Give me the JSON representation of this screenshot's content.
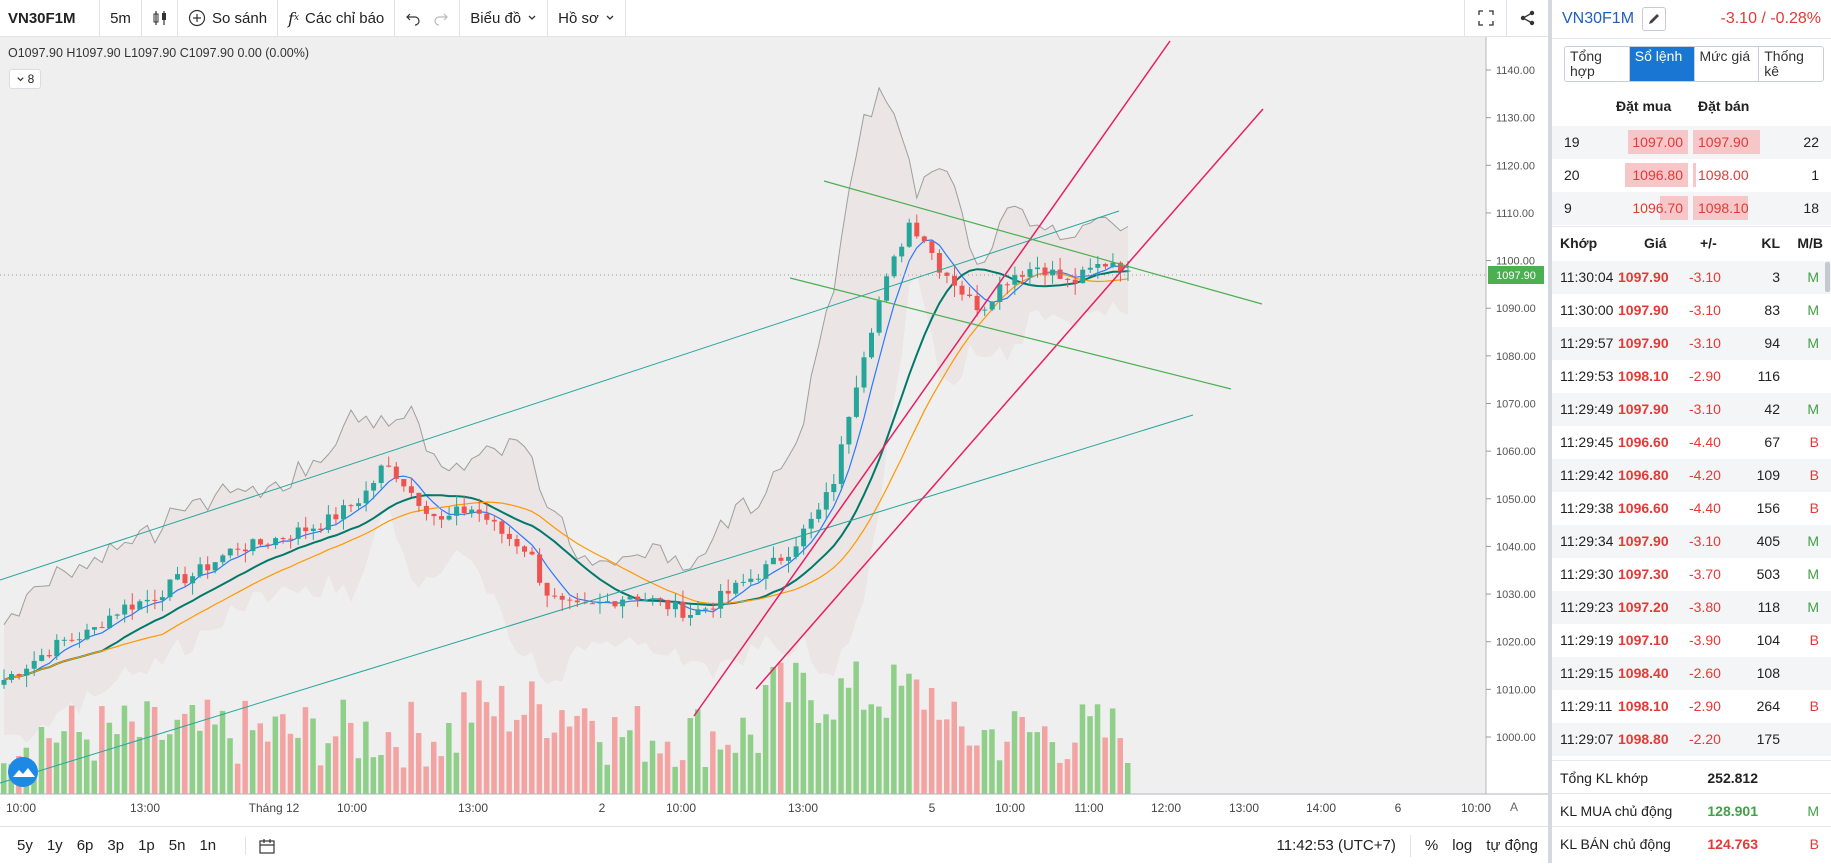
{
  "toolbar": {
    "symbol": "VN30F1M",
    "interval": "5m",
    "compare": "So sánh",
    "indicators": "Các chỉ báo",
    "chart_menu": "Biểu đồ",
    "profile_menu": "Hồ sơ"
  },
  "ohlc": {
    "o_label": "O",
    "o": "1097.90",
    "h_label": "H",
    "h": "1097.90",
    "l_label": "L",
    "l": "1097.90",
    "c_label": "C",
    "c": "1097.90",
    "change": "0.00 (0.00%)"
  },
  "indicator_count": "8",
  "price_axis": {
    "ticks": [
      "1140.00",
      "1130.00",
      "1120.00",
      "1110.00",
      "1100.00",
      "1090.00",
      "1080.00",
      "1070.00",
      "1060.00",
      "1050.00",
      "1040.00",
      "1030.00",
      "1020.00",
      "1010.00",
      "1000.00"
    ],
    "last_price": "1097.90"
  },
  "time_axis": {
    "ticks": [
      "10:00",
      "13:00",
      "Tháng 12",
      "10:00",
      "13:00",
      "2",
      "10:00",
      "13:00",
      "5",
      "10:00",
      "11:00",
      "12:00",
      "13:00",
      "14:00",
      "6",
      "10:00"
    ],
    "auto_scale_label": "A"
  },
  "bottom": {
    "timeframes": [
      "5y",
      "1y",
      "6p",
      "3p",
      "1p",
      "5n",
      "1n"
    ],
    "clock": "11:42:53 (UTC+7)",
    "percent": "%",
    "log": "log",
    "auto": "tự động"
  },
  "panel": {
    "symbol": "VN30F1M",
    "change": "-3.10 / -0.28%",
    "tabs": [
      "Tổng hợp",
      "Sổ lệnh",
      "Mức giá",
      "Thống kê"
    ],
    "active_tab": "Sổ lệnh",
    "bid_header": "Đặt mua",
    "ask_header": "Đặt bán",
    "orderbook": [
      {
        "bid_count": "19",
        "bid": "1097.00",
        "ask": "1097.90",
        "ask_count": "22",
        "bid_depth": 0.43,
        "ask_depth": 0.48
      },
      {
        "bid_count": "20",
        "bid": "1096.80",
        "ask": "1098.00",
        "ask_count": "1",
        "bid_depth": 0.45,
        "ask_depth": 0.02
      },
      {
        "bid_count": "9",
        "bid": "1096.70",
        "ask": "1098.10",
        "ask_count": "18",
        "bid_depth": 0.2,
        "ask_depth": 0.39
      }
    ],
    "trades_header": {
      "time": "Khớp",
      "price": "Giá",
      "chg": "+/-",
      "vol": "KL",
      "mb": "M/B"
    },
    "trades": [
      {
        "time": "11:30:04",
        "price": "1097.90",
        "chg": "-3.10",
        "vol": "3",
        "mb": "M"
      },
      {
        "time": "11:30:00",
        "price": "1097.90",
        "chg": "-3.10",
        "vol": "83",
        "mb": "M"
      },
      {
        "time": "11:29:57",
        "price": "1097.90",
        "chg": "-3.10",
        "vol": "94",
        "mb": "M"
      },
      {
        "time": "11:29:53",
        "price": "1098.10",
        "chg": "-2.90",
        "vol": "116",
        "mb": ""
      },
      {
        "time": "11:29:49",
        "price": "1097.90",
        "chg": "-3.10",
        "vol": "42",
        "mb": "M"
      },
      {
        "time": "11:29:45",
        "price": "1096.60",
        "chg": "-4.40",
        "vol": "67",
        "mb": "B"
      },
      {
        "time": "11:29:42",
        "price": "1096.80",
        "chg": "-4.20",
        "vol": "109",
        "mb": "B"
      },
      {
        "time": "11:29:38",
        "price": "1096.60",
        "chg": "-4.40",
        "vol": "156",
        "mb": "B"
      },
      {
        "time": "11:29:34",
        "price": "1097.90",
        "chg": "-3.10",
        "vol": "405",
        "mb": "M"
      },
      {
        "time": "11:29:30",
        "price": "1097.30",
        "chg": "-3.70",
        "vol": "503",
        "mb": "M"
      },
      {
        "time": "11:29:23",
        "price": "1097.20",
        "chg": "-3.80",
        "vol": "118",
        "mb": "M"
      },
      {
        "time": "11:29:19",
        "price": "1097.10",
        "chg": "-3.90",
        "vol": "104",
        "mb": "B"
      },
      {
        "time": "11:29:15",
        "price": "1098.40",
        "chg": "-2.60",
        "vol": "108",
        "mb": ""
      },
      {
        "time": "11:29:11",
        "price": "1098.10",
        "chg": "-2.90",
        "vol": "264",
        "mb": "B"
      },
      {
        "time": "11:29:07",
        "price": "1098.80",
        "chg": "-2.20",
        "vol": "175",
        "mb": ""
      }
    ],
    "summary": [
      {
        "label": "Tổng KL khớp",
        "value": "252.812",
        "mb": "",
        "color": "#222222"
      },
      {
        "label": "KL MUA chủ động",
        "value": "128.901",
        "mb": "M",
        "color": "#43a047"
      },
      {
        "label": "KL BÁN chủ động",
        "value": "124.763",
        "mb": "B",
        "color": "#e53935"
      }
    ]
  },
  "colors": {
    "up": "#26a69a",
    "down": "#ef5350",
    "vol_up": "#8fcf8a",
    "vol_down": "#f4a3a3",
    "buy": "#43a047",
    "sell": "#e53935",
    "trendline_red": "#e91e63",
    "trendline_green": "#4caf50",
    "trendline_teal": "#26a69a",
    "ma_blue": "#2979ff",
    "ma_orange": "#ff9800",
    "ma_dark": "#00796b",
    "bb": "#9e9e9e"
  },
  "chart_data": {
    "type": "candlestick",
    "symbol": "VN30F1M",
    "interval": "5m",
    "ylim": [
      995,
      1145
    ],
    "close_trend": [
      1012,
      1014,
      1016,
      1018,
      1020,
      1021,
      1022,
      1025,
      1027,
      1028,
      1029,
      1031,
      1033,
      1034,
      1036,
      1038,
      1040,
      1040,
      1041,
      1042,
      1043,
      1044,
      1045,
      1047,
      1049,
      1052,
      1057,
      1055,
      1051,
      1048,
      1045,
      1047,
      1048,
      1046,
      1043,
      1041,
      1039,
      1031,
      1028,
      1027,
      1027,
      1028,
      1029,
      1030,
      1029,
      1028,
      1027,
      1026,
      1027,
      1029,
      1031,
      1033,
      1035,
      1037,
      1040,
      1044,
      1048,
      1055,
      1070,
      1082,
      1092,
      1100,
      1108,
      1105,
      1099,
      1096,
      1092,
      1090,
      1094,
      1097,
      1098,
      1099,
      1097,
      1095,
      1097,
      1099,
      1100,
      1097.9
    ],
    "last_close": 1097.9
  }
}
